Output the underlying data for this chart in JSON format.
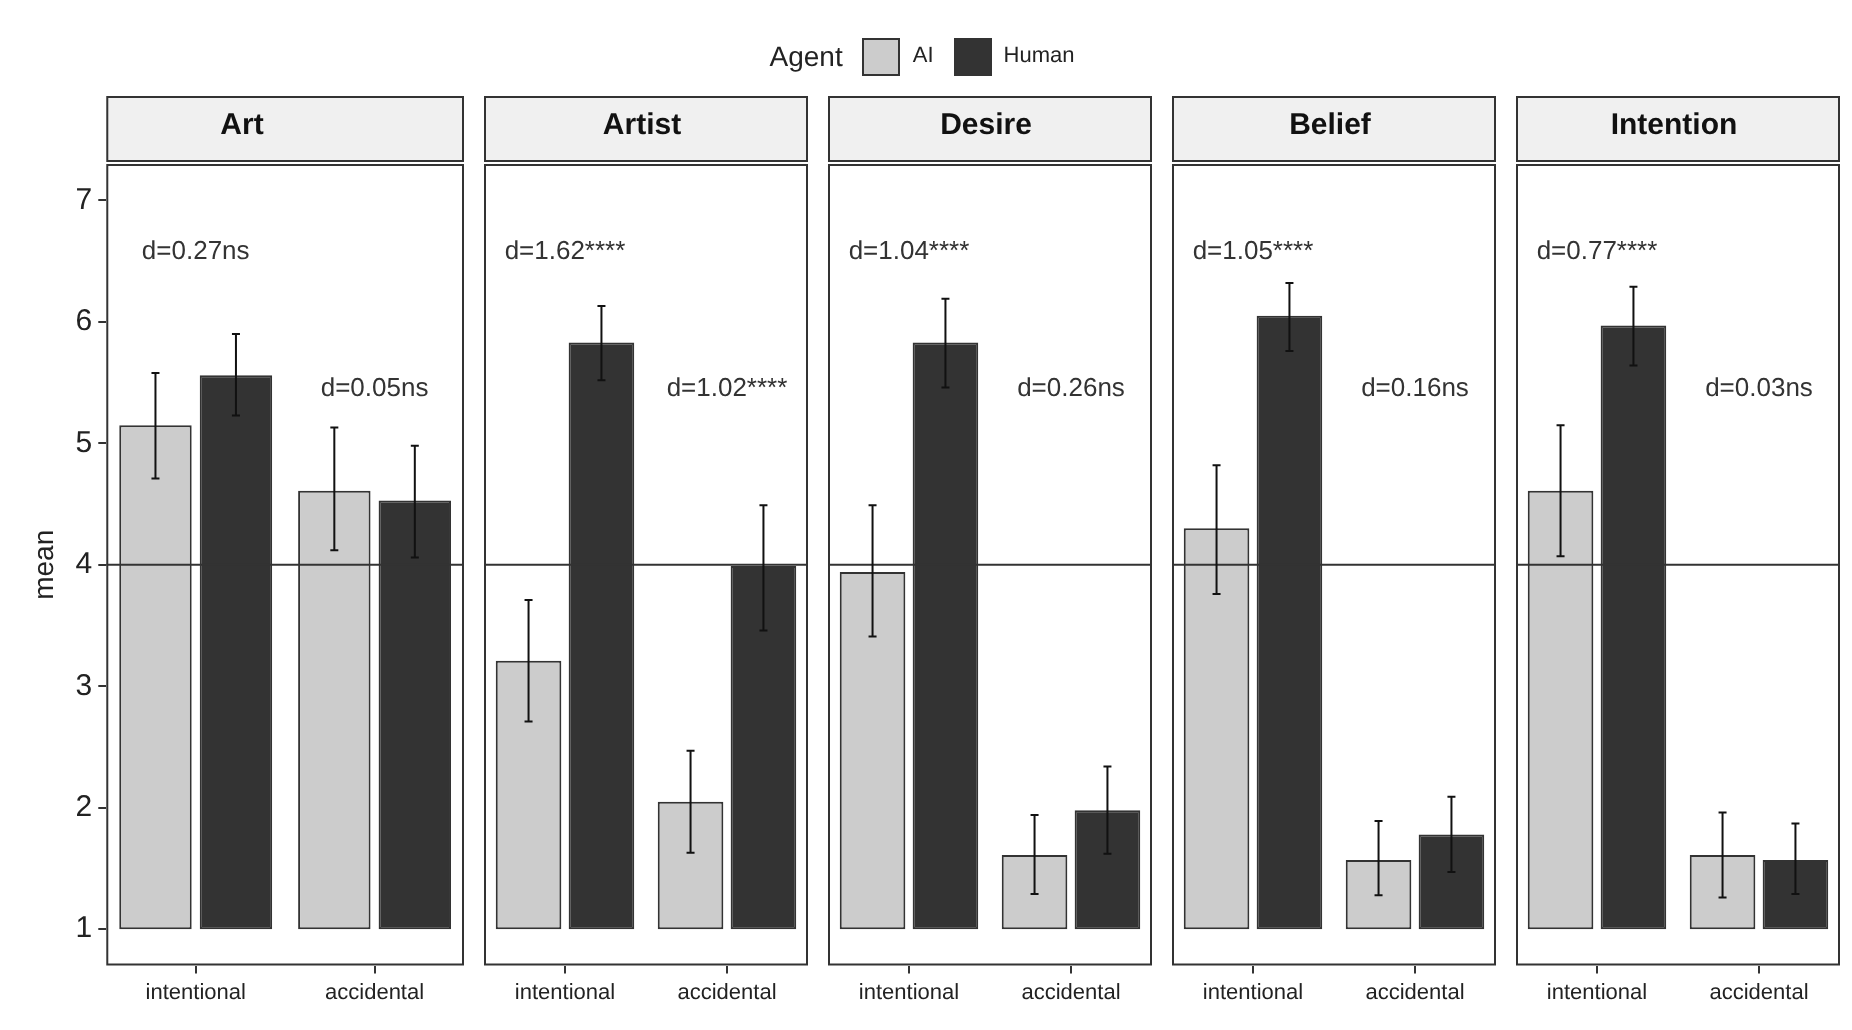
{
  "chart_data": [
    {
      "type": "bar",
      "title": "Art",
      "ylabel": "mean",
      "categories": [
        "intentional",
        "accidental"
      ],
      "legend": "top",
      "legend_title": "Agent",
      "grid": false,
      "ylim": [
        0.7,
        7.3
      ],
      "yticks": [
        1,
        2,
        3,
        4,
        5,
        6,
        7
      ],
      "series": [
        {
          "name": "AI",
          "color": "#cccccc",
          "base": [
            1,
            1
          ],
          "values": [
            4.15,
            3.61
          ],
          "errors": [
            [
              4.71,
              5.58
            ],
            [
              4.12,
              5.13
            ]
          ]
        },
        {
          "name": "Human",
          "color": "#333333",
          "base": [
            1,
            1
          ],
          "values": [
            4.56,
            3.53
          ],
          "errors": [
            [
              5.23,
              5.9
            ],
            [
              4.06,
              4.98
            ]
          ]
        }
      ],
      "ref_lines": [
        {
          "axis": "y",
          "value": 4
        }
      ],
      "annotations": [
        "d=0.27ns",
        "d=0.05ns"
      ]
    },
    {
      "type": "bar",
      "title": "Artist",
      "categories": [
        "intentional",
        "accidental"
      ],
      "grid": false,
      "tick_labels": "x",
      "ylim": [
        0.7,
        7.3
      ],
      "series": [
        {
          "color": "#cccccc",
          "base": [
            1,
            1
          ],
          "values": [
            2.21,
            1.05
          ],
          "errors": [
            [
              2.71,
              3.71
            ],
            [
              1.63,
              2.47
            ]
          ]
        },
        {
          "color": "#333333",
          "base": [
            1,
            1
          ],
          "values": [
            4.83,
            2.99
          ],
          "errors": [
            [
              5.52,
              6.13
            ],
            [
              3.46,
              4.49
            ]
          ]
        }
      ],
      "ref_lines": [
        {
          "axis": "y",
          "value": 4
        }
      ],
      "annotations": [
        "d=1.62****",
        "d=1.02****"
      ]
    },
    {
      "type": "bar",
      "title": "Desire",
      "categories": [
        "intentional",
        "accidental"
      ],
      "grid": false,
      "tick_labels": "x",
      "ylim": [
        0.7,
        7.3
      ],
      "series": [
        {
          "color": "#cccccc",
          "base": [
            1,
            1
          ],
          "values": [
            2.94,
            0.61
          ],
          "errors": [
            [
              3.41,
              4.49
            ],
            [
              1.29,
              1.94
            ]
          ]
        },
        {
          "color": "#333333",
          "base": [
            1,
            1
          ],
          "values": [
            4.83,
            0.98
          ],
          "errors": [
            [
              5.46,
              6.19
            ],
            [
              1.62,
              2.34
            ]
          ]
        }
      ],
      "ref_lines": [
        {
          "axis": "y",
          "value": 4
        }
      ],
      "annotations": [
        "d=1.04****",
        "d=0.26ns"
      ]
    },
    {
      "type": "bar",
      "title": "Belief",
      "categories": [
        "intentional",
        "accidental"
      ],
      "grid": false,
      "tick_labels": "x",
      "ylim": [
        0.7,
        7.3
      ],
      "series": [
        {
          "color": "#cccccc",
          "base": [
            1,
            1
          ],
          "values": [
            3.3,
            0.57
          ],
          "errors": [
            [
              3.76,
              4.82
            ],
            [
              1.28,
              1.89
            ]
          ]
        },
        {
          "color": "#333333",
          "base": [
            1,
            1
          ],
          "values": [
            5.05,
            0.78
          ],
          "errors": [
            [
              5.76,
              6.32
            ],
            [
              1.47,
              2.09
            ]
          ]
        }
      ],
      "ref_lines": [
        {
          "axis": "y",
          "value": 4
        }
      ],
      "annotations": [
        "d=1.05****",
        "d=0.16ns"
      ]
    },
    {
      "type": "bar",
      "title": "Intention",
      "categories": [
        "intentional",
        "accidental"
      ],
      "grid": false,
      "tick_labels": "x",
      "ylim": [
        0.7,
        7.3
      ],
      "series": [
        {
          "color": "#cccccc",
          "base": [
            1,
            1
          ],
          "values": [
            3.61,
            0.61
          ],
          "errors": [
            [
              4.07,
              5.15
            ],
            [
              1.26,
              1.96
            ]
          ]
        },
        {
          "color": "#333333",
          "base": [
            1,
            1
          ],
          "values": [
            4.97,
            0.57
          ],
          "errors": [
            [
              5.64,
              6.29
            ],
            [
              1.29,
              1.87
            ]
          ]
        }
      ],
      "ref_lines": [
        {
          "axis": "y",
          "value": 4
        }
      ],
      "annotations": [
        "d=0.77****",
        "d=0.03ns"
      ]
    }
  ]
}
